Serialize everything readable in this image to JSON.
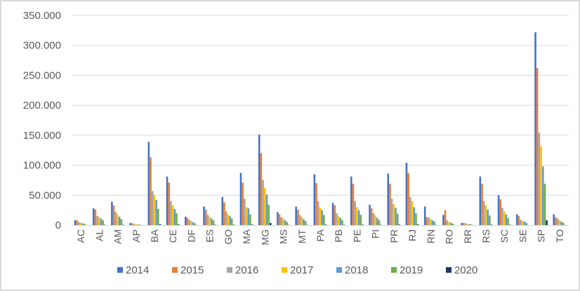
{
  "chart_data": {
    "type": "bar",
    "categories": [
      "AC",
      "AL",
      "AM",
      "AP",
      "BA",
      "CE",
      "DF",
      "ES",
      "GO",
      "MA",
      "MG",
      "MS",
      "MT",
      "PA",
      "PB",
      "PE",
      "PI",
      "PR",
      "RJ",
      "RN",
      "RO",
      "RR",
      "RS",
      "SC",
      "SE",
      "SP",
      "TO"
    ],
    "series": [
      {
        "name": "2014",
        "color": "#4472c4",
        "values": [
          8000,
          28000,
          39000,
          3500,
          139000,
          81000,
          14000,
          31000,
          47000,
          87000,
          151000,
          22000,
          31000,
          85000,
          37000,
          81000,
          34000,
          86000,
          104000,
          31000,
          17000,
          3500,
          81000,
          50000,
          18000,
          322000,
          18000
        ]
      },
      {
        "name": "2015",
        "color": "#ed7d31",
        "values": [
          8000,
          26000,
          33000,
          3000,
          113000,
          71000,
          12000,
          26000,
          38000,
          71000,
          120000,
          18000,
          26000,
          70000,
          33000,
          69000,
          28000,
          69000,
          87000,
          13000,
          25000,
          3500,
          69000,
          43000,
          15000,
          262000,
          13000
        ]
      },
      {
        "name": "2016",
        "color": "#a5a5a5",
        "values": [
          5000,
          15000,
          22000,
          2000,
          57000,
          40000,
          9000,
          17000,
          23000,
          44000,
          75000,
          13000,
          17000,
          40000,
          20000,
          40000,
          20000,
          44000,
          47000,
          13000,
          8000,
          3000,
          40000,
          29000,
          9000,
          154000,
          11000
        ]
      },
      {
        "name": "2017",
        "color": "#ffc000",
        "values": [
          4000,
          14000,
          18000,
          1500,
          50000,
          33000,
          7000,
          14000,
          18000,
          30000,
          62000,
          11000,
          14000,
          29000,
          15000,
          30000,
          16000,
          35000,
          40000,
          10000,
          5000,
          2000,
          33000,
          23000,
          7000,
          132000,
          8000
        ]
      },
      {
        "name": "2018",
        "color": "#5b9bd5",
        "values": [
          3000,
          11000,
          14000,
          1000,
          42000,
          27000,
          5000,
          11000,
          15000,
          28000,
          51000,
          8000,
          10000,
          25000,
          12000,
          25000,
          12000,
          29000,
          30000,
          8000,
          4000,
          1500,
          26000,
          18000,
          6000,
          98000,
          6000
        ]
      },
      {
        "name": "2019",
        "color": "#70ad47",
        "values": [
          2000,
          8000,
          10000,
          800,
          27000,
          20000,
          3000,
          8000,
          11000,
          18000,
          34000,
          5000,
          7000,
          17000,
          8000,
          17000,
          8000,
          19000,
          20000,
          6000,
          2500,
          1000,
          16000,
          12000,
          3500,
          69000,
          4000
        ]
      },
      {
        "name": "2020",
        "color": "#203864",
        "values": [
          200,
          500,
          600,
          100,
          1500,
          1200,
          200,
          500,
          700,
          900,
          3500,
          300,
          400,
          900,
          500,
          900,
          400,
          1000,
          1300,
          300,
          200,
          100,
          800,
          700,
          200,
          8000,
          200
        ]
      }
    ],
    "ylim": [
      0,
      350000
    ],
    "yticks": [
      0,
      50000,
      100000,
      150000,
      200000,
      250000,
      300000,
      350000
    ],
    "ytick_labels": [
      "0",
      "50.000",
      "100.000",
      "150.000",
      "200.000",
      "250.000",
      "300.000",
      "350.000"
    ],
    "grid": true,
    "legend_position": "bottom"
  }
}
